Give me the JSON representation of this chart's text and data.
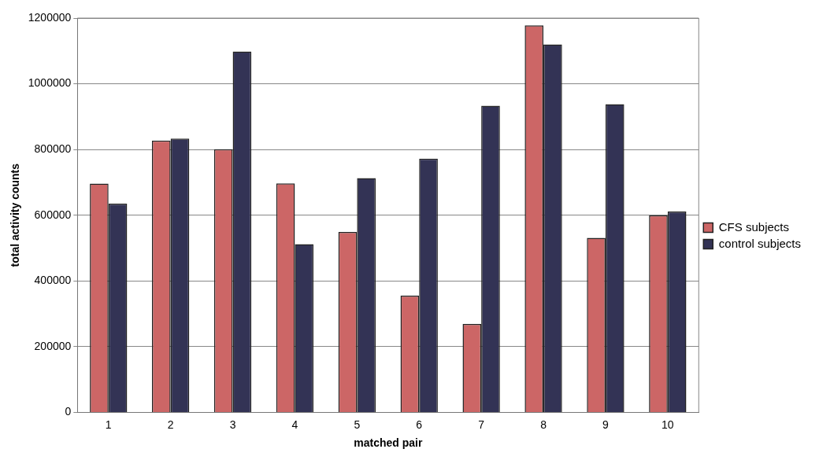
{
  "chart_data": {
    "type": "bar",
    "xlabel": "matched pair",
    "ylabel": "total activity counts",
    "categories": [
      "1",
      "2",
      "3",
      "4",
      "5",
      "6",
      "7",
      "8",
      "9",
      "10"
    ],
    "series": [
      {
        "name": "CFS subjects",
        "color": "#cc6666",
        "values": [
          696000,
          827000,
          801000,
          697000,
          549000,
          355000,
          269000,
          1178000,
          531000,
          600000
        ]
      },
      {
        "name": "control subjects",
        "color": "#333355",
        "values": [
          635000,
          833000,
          1098000,
          512000,
          713000,
          772000,
          933000,
          1120000,
          938000,
          611000
        ]
      }
    ],
    "ylim": [
      0,
      1200000
    ],
    "yticks": [
      0,
      200000,
      400000,
      600000,
      800000,
      1000000,
      1200000
    ],
    "grid": "y",
    "legend": "right"
  }
}
